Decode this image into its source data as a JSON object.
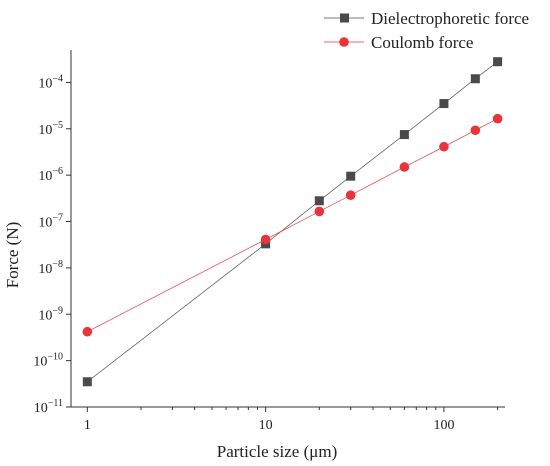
{
  "chart_data": {
    "type": "line",
    "title": "",
    "xlabel": "Particle size (μm)",
    "ylabel": "Force (N)",
    "x_scale": "log",
    "y_scale": "log",
    "xlim": [
      0.81,
      220
    ],
    "ylim": [
      1e-11,
      0.0005
    ],
    "x_ticks": [
      {
        "value": 1,
        "label": "1"
      },
      {
        "value": 10,
        "label": "10"
      },
      {
        "value": 100,
        "label": "100"
      }
    ],
    "y_ticks": [
      {
        "value": 1e-11,
        "base": "10",
        "exp": "−11"
      },
      {
        "value": 1e-10,
        "base": "10",
        "exp": "−10"
      },
      {
        "value": 1e-09,
        "base": "10",
        "exp": "−9"
      },
      {
        "value": 1e-08,
        "base": "10",
        "exp": "−8"
      },
      {
        "value": 1e-07,
        "base": "10",
        "exp": "−7"
      },
      {
        "value": 1e-06,
        "base": "10",
        "exp": "−6"
      },
      {
        "value": 1e-05,
        "base": "10",
        "exp": "−5"
      },
      {
        "value": 0.0001,
        "base": "10",
        "exp": "−4"
      }
    ],
    "grid": false,
    "legend_position": "top-right",
    "series": [
      {
        "name": "Dielectrophoretic force",
        "marker": "square",
        "color": "#4a4a4a",
        "points": [
          {
            "x": 1,
            "y": 3.5e-11
          },
          {
            "x": 10,
            "y": 3.3e-08
          },
          {
            "x": 20,
            "y": 2.8e-07
          },
          {
            "x": 30,
            "y": 9.5e-07
          },
          {
            "x": 60,
            "y": 7.5e-06
          },
          {
            "x": 100,
            "y": 3.5e-05
          },
          {
            "x": 150,
            "y": 0.00012
          },
          {
            "x": 200,
            "y": 0.00028
          }
        ]
      },
      {
        "name": "Coulomb force",
        "marker": "circle",
        "color": "#e8343b",
        "points": [
          {
            "x": 1,
            "y": 4.2e-10
          },
          {
            "x": 10,
            "y": 4.1e-08
          },
          {
            "x": 20,
            "y": 1.65e-07
          },
          {
            "x": 30,
            "y": 3.7e-07
          },
          {
            "x": 60,
            "y": 1.5e-06
          },
          {
            "x": 100,
            "y": 4.1e-06
          },
          {
            "x": 150,
            "y": 9.3e-06
          },
          {
            "x": 200,
            "y": 1.65e-05
          }
        ]
      }
    ]
  }
}
